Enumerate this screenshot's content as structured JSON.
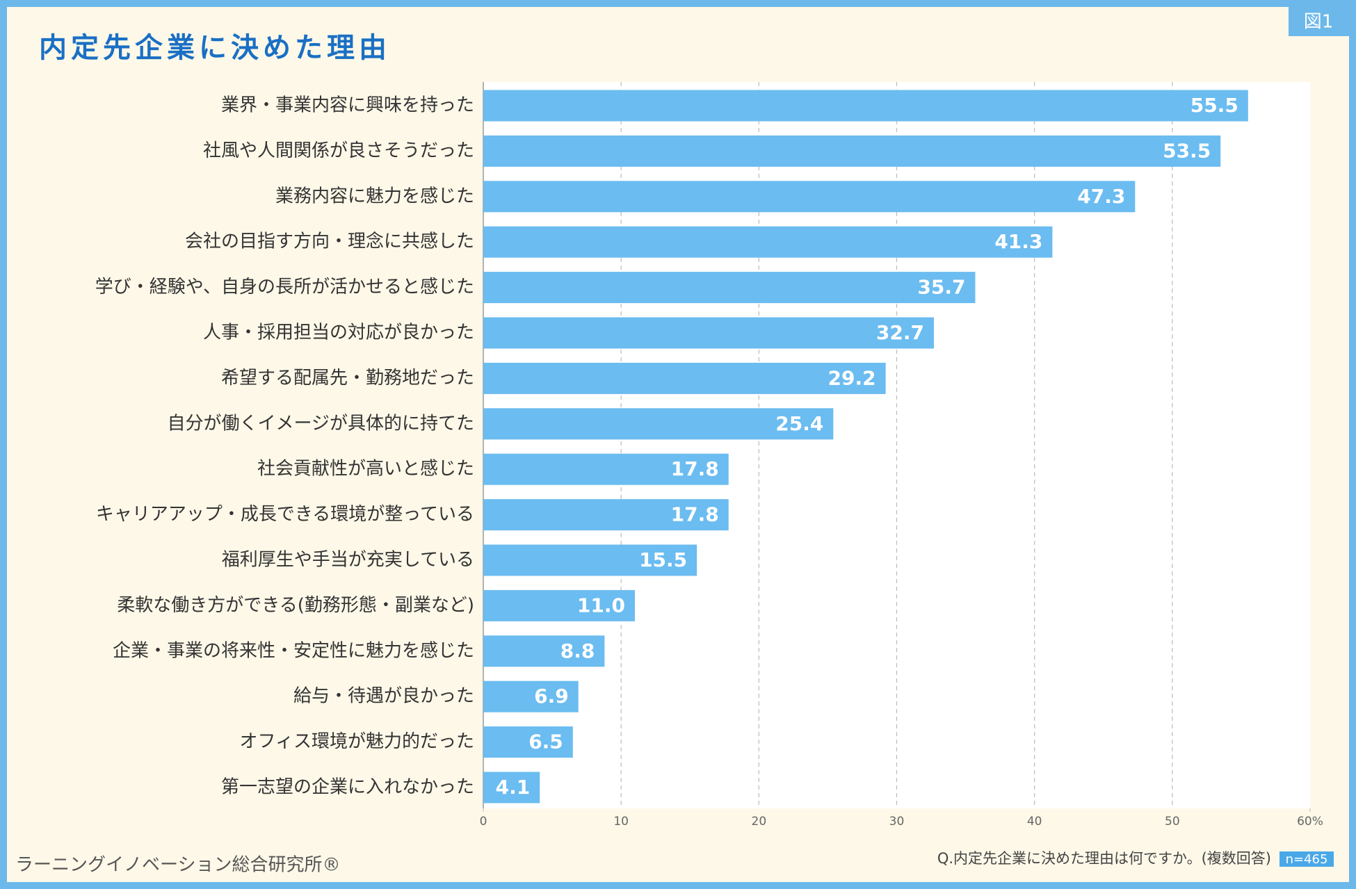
{
  "chart_data": {
    "type": "bar",
    "orientation": "horizontal",
    "title": "内定先企業に決めた理由",
    "badge": "図1",
    "categories": [
      "業界・事業内容に興味を持った",
      "社風や人間関係が良さそうだった",
      "業務内容に魅力を感じた",
      "会社の目指す方向・理念に共感した",
      "学び・経験や、自身の長所が活かせると感じた",
      "人事・採用担当の対応が良かった",
      "希望する配属先・勤務地だった",
      "自分が働くイメージが具体的に持てた",
      "社会貢献性が高いと感じた",
      "キャリアアップ・成長できる環境が整っている",
      "福利厚生や手当が充実している",
      "柔軟な働き方ができる(勤務形態・副業など)",
      "企業・事業の将来性・安定性に魅力を感じた",
      "給与・待遇が良かった",
      "オフィス環境が魅力的だった",
      "第一志望の企業に入れなかった"
    ],
    "values": [
      55.5,
      53.5,
      47.3,
      41.3,
      35.7,
      32.7,
      29.2,
      25.4,
      17.8,
      17.8,
      15.5,
      11.0,
      8.8,
      6.9,
      6.5,
      4.1
    ],
    "value_labels": [
      "55.5",
      "53.5",
      "47.3",
      "41.3",
      "35.7",
      "32.7",
      "29.2",
      "25.4",
      "17.8",
      "17.8",
      "15.5",
      "11.0",
      "8.8",
      "6.9",
      "6.5",
      "4.1"
    ],
    "color": "#6bbcf0",
    "xlim": [
      0,
      60
    ],
    "xticks": [
      0,
      10,
      20,
      30,
      40,
      50,
      {
        "value": 60,
        "label": "60%"
      }
    ],
    "grid": true,
    "source": "ラーニングイノベーション総合研究所®",
    "question": "Q.内定先企業に決めた理由は何ですか。(複数回答)",
    "sample": "n=465"
  }
}
